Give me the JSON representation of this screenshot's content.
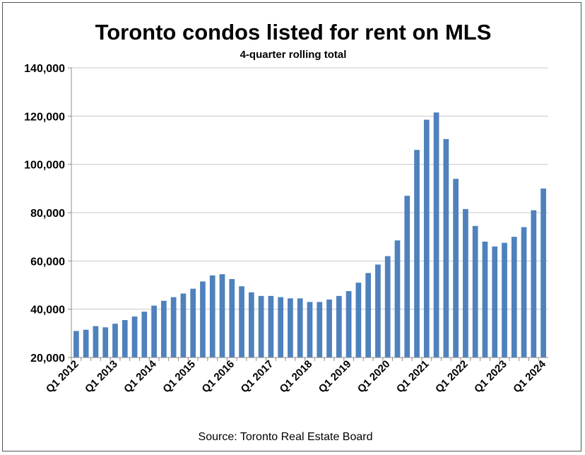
{
  "chart_data": {
    "type": "bar",
    "title": "Toronto condos listed for rent on MLS",
    "subtitle": "4-quarter rolling total",
    "source": "Source: Toronto Real Estate Board",
    "xlabel": "",
    "ylabel": "",
    "ylim": [
      20000,
      140000
    ],
    "yticks": [
      {
        "value": 20000,
        "label": "20,000"
      },
      {
        "value": 40000,
        "label": "40,000"
      },
      {
        "value": 60000,
        "label": "60,000"
      },
      {
        "value": 80000,
        "label": "80,000"
      },
      {
        "value": 100000,
        "label": "100,000"
      },
      {
        "value": 120000,
        "label": "120,000"
      },
      {
        "value": 140000,
        "label": "140,000"
      }
    ],
    "grid": true,
    "bar_color": "#4f81bd",
    "categories": [
      "Q1 2012",
      "Q2 2012",
      "Q3 2012",
      "Q4 2012",
      "Q1 2013",
      "Q2 2013",
      "Q3 2013",
      "Q4 2013",
      "Q1 2014",
      "Q2 2014",
      "Q3 2014",
      "Q4 2014",
      "Q1 2015",
      "Q2 2015",
      "Q3 2015",
      "Q4 2015",
      "Q1 2016",
      "Q2 2016",
      "Q3 2016",
      "Q4 2016",
      "Q1 2017",
      "Q2 2017",
      "Q3 2017",
      "Q4 2017",
      "Q1 2018",
      "Q2 2018",
      "Q3 2018",
      "Q4 2018",
      "Q1 2019",
      "Q2 2019",
      "Q3 2019",
      "Q4 2019",
      "Q1 2020",
      "Q2 2020",
      "Q3 2020",
      "Q4 2020",
      "Q1 2021",
      "Q2 2021",
      "Q3 2021",
      "Q4 2021",
      "Q1 2022",
      "Q2 2022",
      "Q3 2022",
      "Q4 2022",
      "Q1 2023",
      "Q2 2023",
      "Q3 2023",
      "Q4 2023",
      "Q1 2024"
    ],
    "xtick_labels": [
      "Q1 2012",
      "Q1 2013",
      "Q1 2014",
      "Q1 2015",
      "Q1 2016",
      "Q1 2017",
      "Q1 2018",
      "Q1 2019",
      "Q1 2020",
      "Q1 2021",
      "Q1 2022",
      "Q1 2023",
      "Q1 2024"
    ],
    "values": [
      31000,
      31500,
      33000,
      32500,
      34000,
      35500,
      37000,
      39000,
      41500,
      43500,
      45000,
      46500,
      48500,
      51500,
      54000,
      54500,
      52500,
      49500,
      47000,
      45500,
      45500,
      45000,
      44500,
      44500,
      43000,
      43000,
      44000,
      45500,
      47500,
      51000,
      55000,
      58500,
      62000,
      68500,
      87000,
      106000,
      118500,
      121500,
      110500,
      94000,
      81500,
      74500,
      68000,
      66000,
      67500,
      70000,
      74000,
      81000,
      90000
    ]
  }
}
